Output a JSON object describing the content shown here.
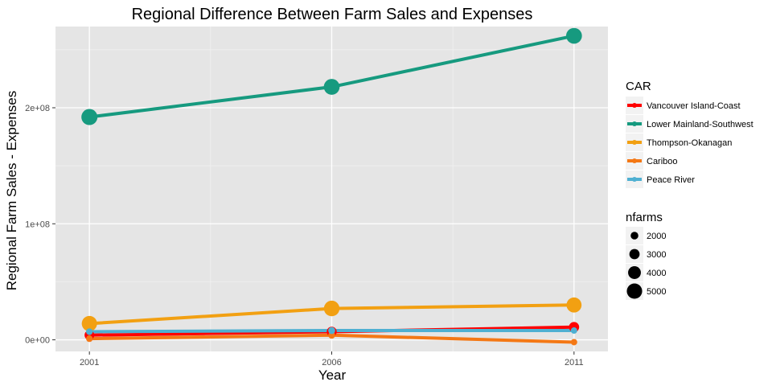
{
  "chart_data": {
    "type": "line",
    "title": "Regional Difference Between Farm Sales and Expenses",
    "xlabel": "Year",
    "ylabel": "Regional Farm Sales - Expenses",
    "x": [
      2001,
      2006,
      2011
    ],
    "xticks": [
      "2001",
      "2006",
      "2011"
    ],
    "ylim": [
      -10000000,
      270000000
    ],
    "yticks": [
      {
        "value": 0,
        "label": "0e+00"
      },
      {
        "value": 100000000,
        "label": "1e+08"
      },
      {
        "value": 200000000,
        "label": "2e+08"
      }
    ],
    "grid": true,
    "legend_position": "right",
    "series": [
      {
        "name": "Vancouver Island-Coast",
        "color": "#ff0000",
        "values": [
          4000000,
          7000000,
          11000000
        ],
        "nfarms": [
          2800,
          2900,
          3000
        ]
      },
      {
        "name": "Lower Mainland-Southwest",
        "color": "#169a7f",
        "values": [
          192000000,
          218000000,
          262000000
        ],
        "nfarms": [
          5300,
          5200,
          5200
        ]
      },
      {
        "name": "Thompson-Okanagan",
        "color": "#f2a012",
        "values": [
          14000000,
          27000000,
          30000000
        ],
        "nfarms": [
          5000,
          5100,
          4900
        ]
      },
      {
        "name": "Cariboo",
        "color": "#f47815",
        "values": [
          1000000,
          4000000,
          -2000000
        ],
        "nfarms": [
          1600,
          1700,
          1500
        ]
      },
      {
        "name": "Peace River",
        "color": "#4fb0d2",
        "values": [
          7000000,
          8000000,
          8000000
        ],
        "nfarms": [
          1600,
          1700,
          1500
        ]
      }
    ],
    "legend_color": {
      "title": "CAR",
      "entries": [
        "Vancouver Island-Coast",
        "Lower Mainland-Southwest",
        "Thompson-Okanagan",
        "Cariboo",
        "Peace River"
      ]
    },
    "legend_size": {
      "title": "nfarms",
      "entries": [
        {
          "label": "2000",
          "value": 2000
        },
        {
          "label": "3000",
          "value": 3000
        },
        {
          "label": "4000",
          "value": 4000
        },
        {
          "label": "5000",
          "value": 5000
        }
      ]
    }
  }
}
